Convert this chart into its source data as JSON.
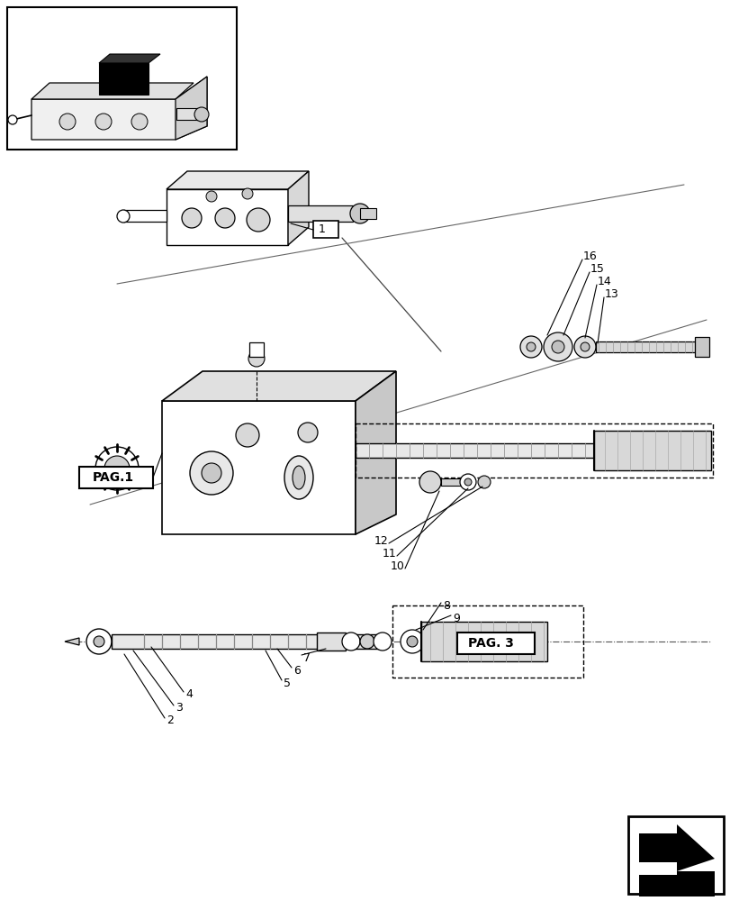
{
  "bg_color": "#ffffff",
  "lc": "#000000",
  "fig_w": 8.12,
  "fig_h": 10.0,
  "dpi": 100
}
